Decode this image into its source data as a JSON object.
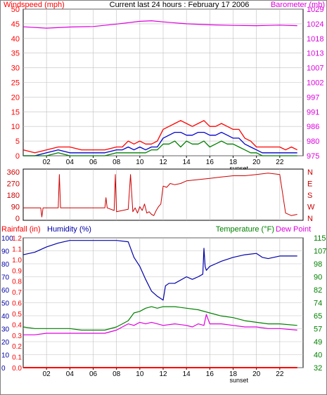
{
  "header": {
    "left_label": "Windspeed (mph)",
    "center_title": "Current last 24 hours : February 17 2006",
    "right_label": "Barometer (mb)"
  },
  "colors": {
    "windspeed": "#ff0000",
    "wind_gust": "#ff0000",
    "wind_avg": "#0000cc",
    "wind_low": "#008000",
    "barometer": "#dd00dd",
    "direction": "#cc0000",
    "rainfall": "#ff0000",
    "humidity": "#0000aa",
    "temperature": "#008000",
    "dewpoint": "#dd00dd",
    "grid": "#c0c0c0"
  },
  "chart_data": [
    {
      "type": "line",
      "name": "wind-barometer",
      "x_ticks": [
        "02",
        "04",
        "06",
        "08",
        "10",
        "12",
        "14",
        "16",
        "18",
        "20",
        "22"
      ],
      "x_marker": "sunset",
      "left_axis": {
        "label": "Windspeed (mph)",
        "ticks": [
          0,
          5,
          10,
          15,
          20,
          25,
          30,
          35,
          40,
          45,
          50
        ],
        "range": [
          0,
          50
        ]
      },
      "right_axis": {
        "label": "Barometer (mb)",
        "ticks": [
          975,
          980,
          986,
          991,
          997,
          1002,
          1007,
          1013,
          1018,
          1024,
          1029
        ],
        "range": [
          975,
          1029
        ]
      },
      "series": [
        {
          "id": "gust",
          "x": [
            0,
            1,
            2,
            3,
            4,
            5,
            6,
            7,
            8,
            8.5,
            9,
            9.5,
            10,
            10.5,
            11,
            11.5,
            12,
            12.5,
            13,
            13.5,
            14,
            14.5,
            15,
            15.5,
            16,
            16.5,
            17,
            17.5,
            18,
            18.5,
            19,
            19.5,
            20,
            20.5,
            21,
            21.5,
            22,
            22.5,
            23,
            23.5
          ],
          "y": [
            2,
            1,
            2,
            3,
            3,
            2,
            2,
            2,
            3,
            3,
            5,
            4,
            5,
            4,
            4,
            5,
            9,
            10,
            11,
            12,
            11,
            10,
            11,
            12,
            10,
            10,
            11,
            10,
            9,
            9,
            6,
            5,
            3,
            3,
            3,
            3,
            3,
            2,
            3,
            2
          ]
        },
        {
          "id": "avg",
          "x": [
            0,
            1,
            2,
            3,
            4,
            5,
            6,
            7,
            8,
            8.5,
            9,
            9.5,
            10,
            10.5,
            11,
            11.5,
            12,
            12.5,
            13,
            13.5,
            14,
            14.5,
            15,
            15.5,
            16,
            16.5,
            17,
            17.5,
            18,
            18.5,
            19,
            19.5,
            20,
            20.5,
            21,
            21.5,
            22,
            22.5,
            23,
            23.5
          ],
          "y": [
            0,
            0,
            1,
            2,
            1,
            1,
            1,
            1,
            2,
            2,
            3,
            2,
            3,
            2,
            3,
            3,
            6,
            7,
            8,
            8,
            7,
            7,
            8,
            8,
            7,
            7,
            8,
            7,
            6,
            6,
            4,
            3,
            2,
            1,
            1,
            1,
            1,
            1,
            1,
            1
          ]
        },
        {
          "id": "low",
          "x": [
            0,
            1,
            2,
            3,
            4,
            5,
            6,
            7,
            8,
            8.5,
            9,
            9.5,
            10,
            10.5,
            11,
            11.5,
            12,
            12.5,
            13,
            13.5,
            14,
            14.5,
            15,
            15.5,
            16,
            16.5,
            17,
            17.5,
            18,
            18.5,
            19,
            19.5,
            20,
            20.5,
            21,
            21.5,
            22,
            22.5,
            23,
            23.5
          ],
          "y": [
            0,
            0,
            0,
            1,
            0,
            0,
            0,
            0,
            1,
            1,
            1,
            1,
            1,
            1,
            2,
            2,
            4,
            4,
            5,
            3,
            5,
            4,
            4,
            5,
            3,
            4,
            5,
            4,
            4,
            3,
            2,
            1,
            1,
            0,
            0,
            0,
            0,
            0,
            0,
            0
          ]
        },
        {
          "id": "barometer",
          "axis": "right",
          "x": [
            0,
            2,
            4,
            6,
            8,
            10,
            11,
            12,
            14,
            16,
            18,
            20,
            22,
            23.5
          ],
          "y": [
            1022.5,
            1022.0,
            1022.4,
            1022.6,
            1023.5,
            1024.5,
            1024.7,
            1024.3,
            1023.6,
            1023.2,
            1023.0,
            1022.9,
            1023.1,
            1022.9
          ]
        }
      ]
    },
    {
      "type": "line",
      "name": "wind-direction",
      "x_ticks": [],
      "left_axis": {
        "ticks": [
          0,
          90,
          180,
          270,
          360
        ],
        "range": [
          0,
          360
        ]
      },
      "right_axis": {
        "ticks": [
          "N",
          "W",
          "S",
          "E",
          "N"
        ]
      },
      "series": [
        {
          "id": "direction",
          "x": [
            0,
            1.5,
            1.6,
            1.7,
            2.0,
            3.0,
            3.1,
            3.2,
            4.0,
            6.0,
            7.0,
            7.1,
            7.2,
            7.8,
            7.9,
            8.0,
            8.5,
            9.0,
            9.2,
            9.4,
            9.6,
            9.8,
            10.0,
            10.2,
            10.4,
            10.6,
            10.8,
            11.0,
            11.2,
            11.4,
            11.6,
            11.8,
            12.0,
            12.3,
            12.6,
            13.0,
            13.5,
            14,
            15,
            16,
            17,
            18,
            19,
            20,
            21,
            22.0,
            22.5,
            23,
            23.5
          ],
          "y": [
            80,
            80,
            10,
            80,
            80,
            80,
            340,
            80,
            80,
            80,
            80,
            160,
            80,
            60,
            340,
            50,
            60,
            70,
            340,
            50,
            80,
            40,
            90,
            60,
            110,
            40,
            50,
            30,
            20,
            60,
            90,
            110,
            250,
            240,
            270,
            260,
            270,
            290,
            300,
            310,
            320,
            330,
            330,
            340,
            350,
            340,
            40,
            20,
            30
          ]
        }
      ]
    },
    {
      "type": "line",
      "name": "rain-humidity-temperature",
      "x_ticks": [
        "02",
        "04",
        "06",
        "08",
        "10",
        "12",
        "14",
        "16",
        "18",
        "20",
        "22"
      ],
      "x_marker": "sunset",
      "labels": {
        "rainfall": "Rainfall (in)",
        "humidity": "Humidity (%)",
        "temperature": "Temperature (°F)",
        "dewpoint": "Dew Point"
      },
      "rain_axis": {
        "ticks": [
          "0.0",
          "0.1",
          "0.2",
          "0.3",
          "0.4",
          "0.5",
          "0.6",
          "0.7",
          "0.8",
          "0.9",
          "1.0",
          "1.1",
          "1.2"
        ],
        "range": [
          0,
          1.2
        ]
      },
      "humidity_axis": {
        "ticks": [
          0,
          10,
          20,
          30,
          40,
          50,
          60,
          70,
          80,
          90,
          100
        ],
        "range": [
          0,
          100
        ]
      },
      "temp_axis": {
        "ticks": [
          32,
          40,
          49,
          57,
          65,
          74,
          82,
          90,
          98,
          107,
          115
        ],
        "range": [
          32,
          115
        ]
      },
      "series": [
        {
          "id": "humidity",
          "axis": "humidity",
          "x": [
            0,
            1,
            2,
            3,
            4,
            5,
            6,
            7,
            8,
            9,
            9.5,
            10,
            10.5,
            11,
            11.5,
            12,
            12.2,
            12.5,
            13,
            14,
            14.5,
            15,
            15.4,
            15.5,
            15.6,
            15.7,
            16,
            16.5,
            17,
            18,
            19,
            20,
            20.5,
            21,
            22,
            23.5
          ],
          "y": [
            87,
            89,
            93,
            96,
            98,
            98,
            98,
            98,
            98,
            97,
            85,
            78,
            68,
            59,
            55,
            52,
            63,
            65,
            65,
            70,
            68,
            70,
            72,
            92,
            78,
            75,
            78,
            80,
            82,
            85,
            87,
            88,
            85,
            84,
            86,
            86
          ]
        },
        {
          "id": "temperature",
          "axis": "temp",
          "x": [
            0,
            1,
            2,
            3,
            4,
            5,
            6,
            7,
            8,
            8.5,
            9,
            9.5,
            10,
            10.5,
            11,
            11.5,
            12,
            13,
            14,
            15,
            16,
            17,
            18,
            19,
            20,
            21,
            22,
            23.5
          ],
          "y": [
            58,
            57,
            57,
            57,
            57,
            56,
            56,
            56,
            58,
            60,
            62,
            67,
            68,
            70,
            71,
            70,
            71,
            71,
            70,
            69,
            67,
            65,
            64,
            62,
            61,
            60,
            60,
            59
          ]
        },
        {
          "id": "dewpoint",
          "axis": "temp",
          "x": [
            0,
            1,
            2,
            3,
            4,
            5,
            6,
            7,
            8,
            8.5,
            9,
            9.5,
            10,
            10.5,
            11,
            11.5,
            12,
            13,
            14,
            14.5,
            15,
            15.5,
            15.7,
            16,
            17,
            18,
            19,
            20,
            21,
            22,
            23.5
          ],
          "y": [
            53,
            53,
            54,
            54,
            54,
            54,
            54,
            54,
            56,
            58,
            60,
            59,
            61,
            60,
            61,
            60,
            59,
            60,
            59,
            58,
            60,
            59,
            66,
            60,
            60,
            59,
            58,
            58,
            57,
            57,
            56
          ]
        },
        {
          "id": "rainfall",
          "axis": "rain",
          "x": [
            0,
            23.5
          ],
          "y": [
            0,
            0
          ]
        }
      ]
    }
  ]
}
